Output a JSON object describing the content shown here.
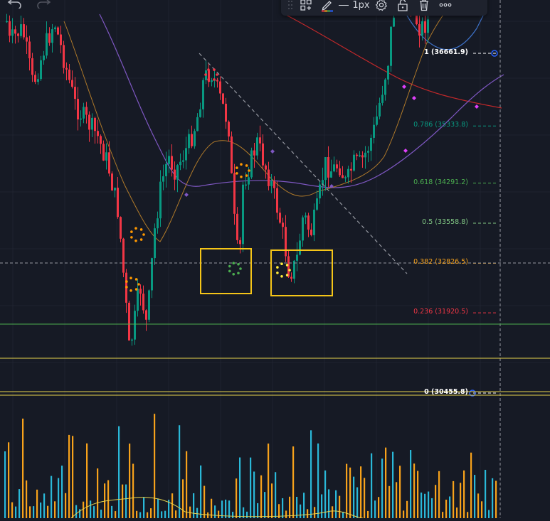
{
  "toolbar": {
    "line_width_label": "1px",
    "items": [
      {
        "icon": "grip-icon"
      },
      {
        "icon": "templates-icon"
      },
      {
        "icon": "pencil-color-icon"
      },
      {
        "icon": "line-width-icon"
      },
      {
        "icon": "settings-gear-icon"
      },
      {
        "icon": "lock-icon"
      },
      {
        "icon": "trash-icon"
      },
      {
        "icon": "more-icon"
      }
    ]
  },
  "history": {
    "undo": "undo-icon",
    "redo": "redo-icon"
  },
  "fib_levels": [
    {
      "label": "1 (36661.9)",
      "color": "#ffffff",
      "bold": true,
      "price": 36661.9
    },
    {
      "label": "0.786 (35333.8)",
      "color": "#089981",
      "price": 35333.8
    },
    {
      "label": "0.618 (34291.2)",
      "color": "#4caf50",
      "price": 34291.2
    },
    {
      "label": "0.5 (33558.8)",
      "color": "#81c784",
      "price": 33558.8
    },
    {
      "label": "0.382 (32826.5)",
      "color": "#f7a21b",
      "price": 32826.5
    },
    {
      "label": "0.236 (31920.5)",
      "color": "#f23645",
      "price": 31920.5
    },
    {
      "label": "0 (30455.8)",
      "color": "#ffffff",
      "bold": true,
      "price": 30455.8
    }
  ],
  "colors": {
    "background": "#161a25",
    "grid": "#1f2330",
    "candle_up": "#089981",
    "candle_down": "#f23645",
    "volume_up": "#2ab8d8",
    "volume_down": "#f7a21b",
    "ma_slow": "#c2282a",
    "ma_mid": "#7e57c2",
    "ma_fast": "#b07a2a",
    "highlight_box": "#f5c518",
    "support_green": "#4caf50",
    "support_yellow": "#e8d44d",
    "anchor_blue": "#2962ff"
  }
}
